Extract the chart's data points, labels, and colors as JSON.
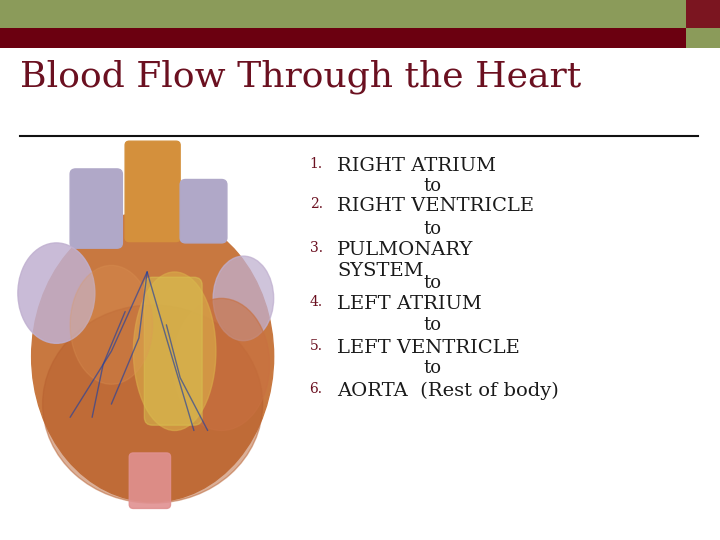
{
  "title": "Blood Flow Through the Heart",
  "title_color": "#6B1020",
  "title_fontsize": 26,
  "background_color": "#FFFFFF",
  "header_bar_top_color": "#8B9B5A",
  "header_bar_bottom_color": "#6B0010",
  "header_accent_color": "#7B1520",
  "header_accent_small_color": "#8B9B5A",
  "divider_color": "#111111",
  "list_items": [
    {
      "num": "1.",
      "main": "RIGHT ATRIUM",
      "sub": "to"
    },
    {
      "num": "2.",
      "main": "RIGHT VENTRICLE",
      "sub": "to"
    },
    {
      "num": "3.",
      "main": "PULMONARY\nSYSTEM",
      "sub": "to"
    },
    {
      "num": "4.",
      "main": "LEFT ATRIUM",
      "sub": "to"
    },
    {
      "num": "5.",
      "main": "LEFT VENTRICLE",
      "sub": "to"
    },
    {
      "num": "6.",
      "main": "AORTA  (Rest of body)",
      "sub": ""
    }
  ],
  "list_text_color": "#1A1A1A",
  "num_text_color": "#6B1020",
  "list_fontsize": 14,
  "num_fontsize": 10,
  "sub_fontsize": 13
}
